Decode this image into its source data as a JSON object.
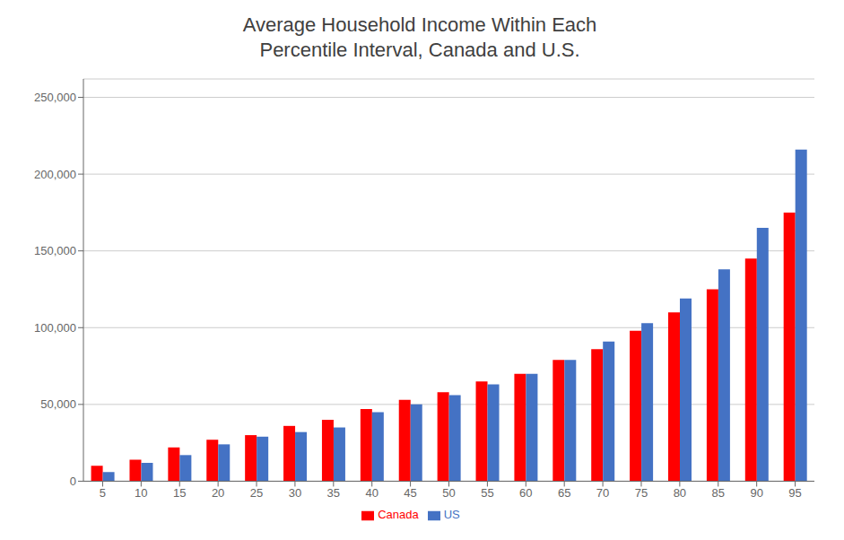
{
  "chart_data": {
    "type": "bar",
    "title": "Average Household Income Within Each\nPercentile Interval, Canada and U.S.",
    "categories": [
      5,
      10,
      15,
      20,
      25,
      30,
      35,
      40,
      45,
      50,
      55,
      60,
      65,
      70,
      75,
      80,
      85,
      90,
      95
    ],
    "series": [
      {
        "name": "Canada",
        "color": "#FF0000",
        "values": [
          10000,
          14000,
          22000,
          27000,
          30000,
          36000,
          40000,
          47000,
          53000,
          58000,
          65000,
          70000,
          79000,
          86000,
          98000,
          110000,
          125000,
          145000,
          175000
        ]
      },
      {
        "name": "US",
        "color": "#4472C4",
        "values": [
          6000,
          12000,
          17000,
          24000,
          29000,
          32000,
          35000,
          45000,
          50000,
          56000,
          63000,
          70000,
          79000,
          91000,
          103000,
          119000,
          138000,
          165000,
          216000
        ]
      }
    ],
    "ylim": [
      0,
      262000
    ],
    "yticks": [
      0,
      {
        "value": 50000,
        "label": "50,000"
      },
      {
        "value": 100000,
        "label": "100,000"
      },
      {
        "value": 150000,
        "label": "150,000"
      },
      {
        "value": 200000,
        "label": "200,000"
      },
      {
        "value": 250000,
        "label": "250,000"
      }
    ],
    "grid": true,
    "legend": "bottom"
  }
}
